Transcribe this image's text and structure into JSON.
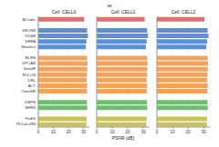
{
  "title": "ss",
  "chart_data": [
    {
      "type": "bar",
      "title": "Cell: CELL0",
      "orientation": "horizontal",
      "grid": true,
      "tick_labels": true,
      "categories": [
        "BiCubic",
        null,
        "SRCNN",
        "VDSR",
        "SRRA",
        "Manifest",
        null,
        "BLRN",
        "DPCAN",
        "SwinIR",
        "EDLCN",
        "DRL",
        "ACT",
        "OmniSR",
        null,
        "DBPN",
        "SRRN",
        null,
        "FedIS",
        "PDLaLaNN"
      ],
      "values": [
        30.5,
        null,
        32.5,
        33,
        32,
        31.5,
        null,
        32.5,
        32.8,
        32.6,
        32.4,
        32.2,
        32.5,
        32.3,
        null,
        32.4,
        32.6,
        null,
        32.2,
        32
      ],
      "colors": [
        "#e07070",
        null,
        "#5b8fd6",
        "#5b8fd6",
        "#5b8fd6",
        "#5b8fd6",
        null,
        "#f2a35e",
        "#f2a35e",
        "#f2a35e",
        "#f2a35e",
        "#f2a35e",
        "#f2a35e",
        "#f2a35e",
        null,
        "#6dbf6d",
        "#6dbf6d",
        null,
        "#c9c45a",
        "#c9c45a"
      ],
      "xlim": [
        0,
        34
      ],
      "xticks": [
        0,
        10,
        20,
        30
      ]
    },
    {
      "type": "bar",
      "title": "Cell: CELL1",
      "orientation": "horizontal",
      "grid": true,
      "tick_labels": "x",
      "xlabel": "PSNR (dB)",
      "categories": [
        "BiCubic",
        null,
        "SRCNN",
        "VDSR",
        "SRRA",
        "Manifest",
        null,
        "BLRN",
        "DPCAN",
        "SwinIR",
        "EDLCN",
        "DRL",
        "ACT",
        "OmniSR",
        null,
        "DBPN",
        "SRRN",
        null,
        "FedIS",
        "PDLaLaNN"
      ],
      "values": [
        30.8,
        null,
        32.4,
        32.9,
        32.1,
        31.6,
        null,
        32.4,
        32.7,
        32.5,
        32.3,
        32.1,
        32.4,
        32.2,
        null,
        32.3,
        32.5,
        null,
        32.1,
        31.9
      ],
      "colors": [
        "#e07070",
        null,
        "#5b8fd6",
        "#5b8fd6",
        "#5b8fd6",
        "#5b8fd6",
        null,
        "#f2a35e",
        "#f2a35e",
        "#f2a35e",
        "#f2a35e",
        "#f2a35e",
        "#f2a35e",
        "#f2a35e",
        null,
        "#6dbf6d",
        "#6dbf6d",
        null,
        "#c9c45a",
        "#c9c45a"
      ],
      "xlim": [
        0,
        34
      ],
      "xticks": [
        0,
        10,
        20,
        30
      ]
    },
    {
      "type": "bar",
      "title": "Cell: CELL2",
      "orientation": "horizontal",
      "grid": true,
      "tick_labels": "x",
      "categories": [
        "BiCubic",
        null,
        "SRCNN",
        "VDSR",
        "SRRA",
        "Manifest",
        null,
        "BLRN",
        "DPCAN",
        "SwinIR",
        "EDLCN",
        "DRL",
        "ACT",
        "OmniSR",
        null,
        "DBPN",
        "SRRN",
        null,
        "FedIS",
        "PDLaLaNN"
      ],
      "values": [
        30.6,
        null,
        32.6,
        33.1,
        32.2,
        31.7,
        null,
        32.6,
        32.9,
        32.7,
        32.5,
        32.3,
        32.6,
        32.4,
        null,
        32.5,
        32.7,
        null,
        32.3,
        32.1
      ],
      "colors": [
        "#e07070",
        null,
        "#5b8fd6",
        "#5b8fd6",
        "#5b8fd6",
        "#5b8fd6",
        null,
        "#f2a35e",
        "#f2a35e",
        "#f2a35e",
        "#f2a35e",
        "#f2a35e",
        "#f2a35e",
        "#f2a35e",
        null,
        "#6dbf6d",
        "#6dbf6d",
        null,
        "#c9c45a",
        "#c9c45a"
      ],
      "xlim": [
        0,
        34
      ],
      "xticks": [
        0,
        10,
        20,
        30
      ]
    }
  ]
}
